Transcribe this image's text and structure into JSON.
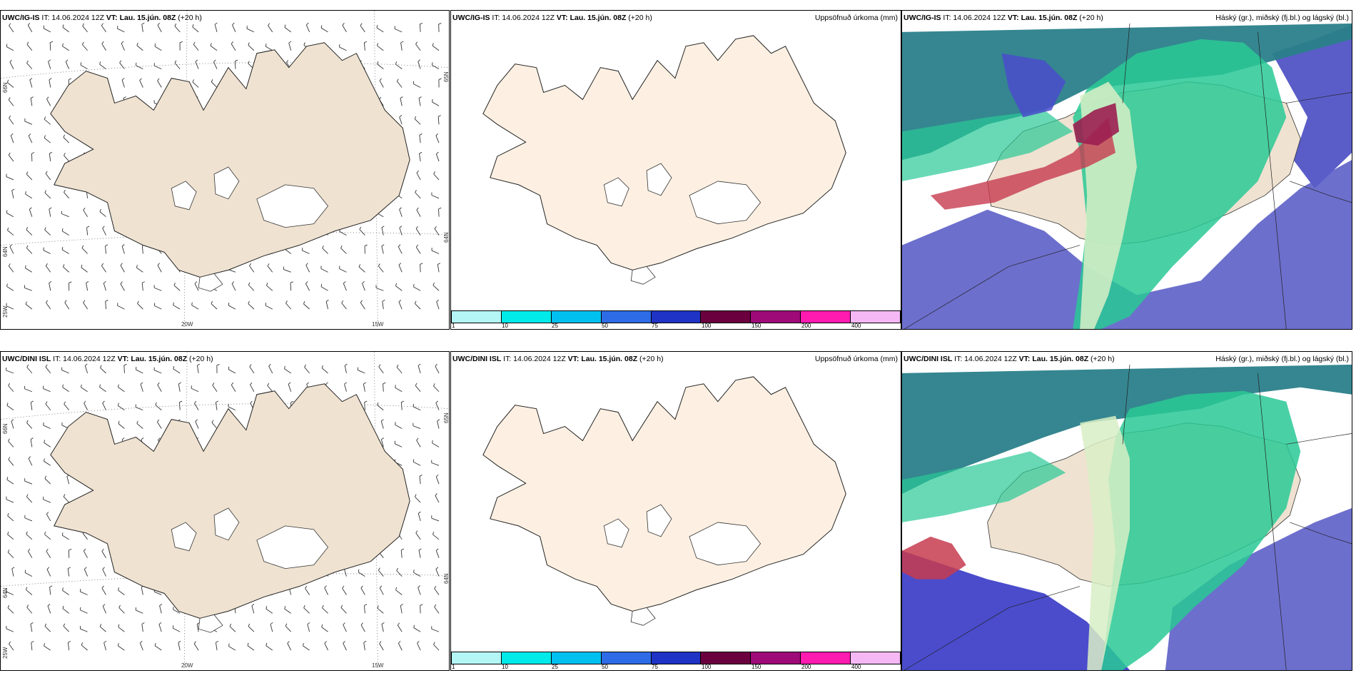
{
  "rows": [
    {
      "model": "UWC/IG-IS",
      "it_label": "IT: 14.06.2024 12Z",
      "vt_label": "VT: Lau. 15.jún. 08Z",
      "lead": "(+20 h)"
    },
    {
      "model": "UWC/DINI ISL",
      "it_label": "IT: 14.06.2024 12Z",
      "vt_label": "VT: Lau. 15.jún. 08Z",
      "lead": "(+20 h)"
    }
  ],
  "panels": {
    "precip_title": "Uppsöfnuð úrkoma (mm)",
    "cloud_title": "Háský (gr.), miðský (fj.bl.) og lágský (bl.)"
  },
  "wind_map": {
    "lon_labels": [
      "25W",
      "20W",
      "15W"
    ],
    "lat_labels_left": [
      "66N",
      "64N"
    ],
    "lat_labels_right": [
      "65N",
      "64N"
    ]
  },
  "precip_colorbar": {
    "ticks": [
      "1",
      "10",
      "25",
      "50",
      "75",
      "100",
      "150",
      "200",
      "400"
    ],
    "colors": [
      "#b4f5f5",
      "#00eaea",
      "#00c0f0",
      "#2e6be6",
      "#1f33c4",
      "#6b003f",
      "#9e0a78",
      "#ff1ab0",
      "#f5b8f5"
    ]
  },
  "colors": {
    "land_wind": "#efe2d1",
    "land_precip": "#fdf0e2",
    "ocean_cloud": "#6c6fcc",
    "high_cloud": "#2a7f8a",
    "mid_cloud": "#29c995",
    "low_cloud": "#4a4ccc"
  }
}
